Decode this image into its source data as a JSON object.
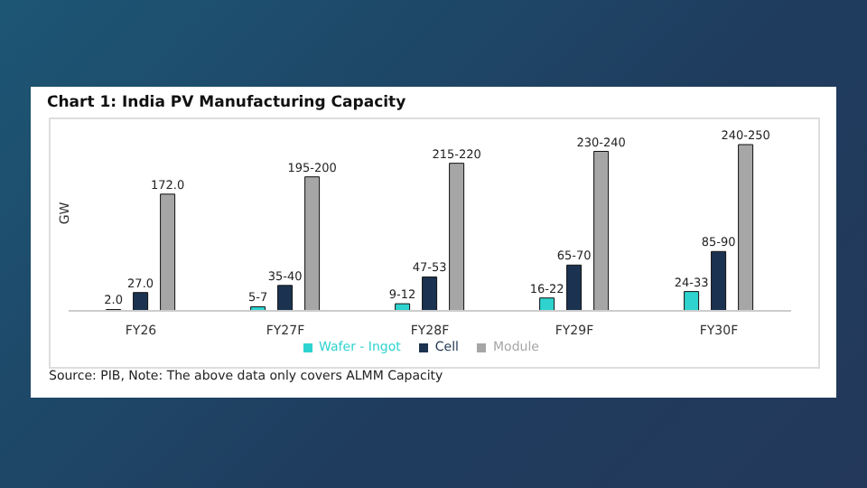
{
  "chart_data": {
    "type": "bar",
    "title": "Chart 1: India PV Manufacturing Capacity",
    "ylabel": "GW",
    "categories": [
      "FY26",
      "FY27F",
      "FY28F",
      "FY29F",
      "FY30F"
    ],
    "series": [
      {
        "name": "Wafer - Ingot",
        "color": "#2ed3cf",
        "values": [
          2,
          6,
          10.5,
          19,
          28.5
        ],
        "value_labels": [
          "2.0",
          "5-7",
          "9-12",
          "16-22",
          "24-33"
        ]
      },
      {
        "name": "Cell",
        "color": "#1b3350",
        "values": [
          27,
          37.5,
          50,
          67.5,
          87.5
        ],
        "value_labels": [
          "27.0",
          "35-40",
          "47-53",
          "65-70",
          "85-90"
        ]
      },
      {
        "name": "Module",
        "color": "#a6a6a6",
        "values": [
          172,
          197.5,
          217.5,
          235,
          245
        ],
        "value_labels": [
          "172.0",
          "195-200",
          "215-220",
          "230-240",
          "240-250"
        ]
      }
    ],
    "legend": "bottom",
    "grid": false,
    "annotations": [
      "Source: PIB, Note: The above data only covers ALMM Capacity"
    ]
  }
}
